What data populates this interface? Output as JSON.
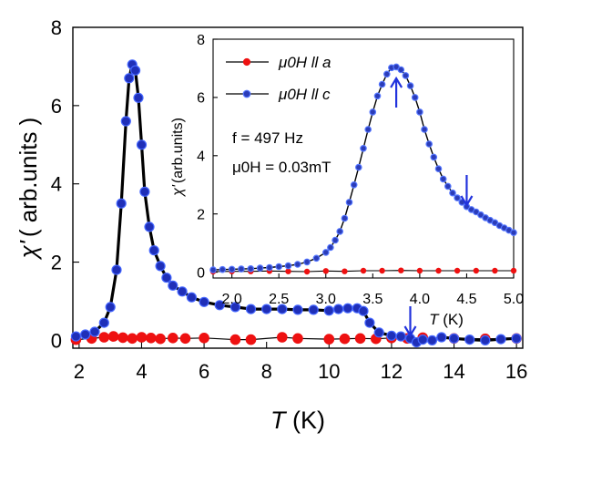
{
  "chart_data": [
    {
      "id": "main",
      "type": "line",
      "xlabel": {
        "symbol": "T",
        "unit": " (K)"
      },
      "ylabel": {
        "symbol": "χ'",
        "unit": "( arb.units )"
      },
      "xlim": [
        1.8,
        16.2
      ],
      "ylim": [
        -0.2,
        8
      ],
      "xticks": [
        2,
        4,
        6,
        8,
        10,
        12,
        14,
        16
      ],
      "yticks": [
        0,
        2,
        4,
        6,
        8
      ],
      "arrows_at_x": [
        12.6
      ],
      "series": [
        {
          "name": "μ0H ll a",
          "marker_color": "#ee1111",
          "edge_color": "#ee1111",
          "x": [
            1.9,
            2.4,
            2.8,
            3.1,
            3.4,
            3.7,
            4.0,
            4.3,
            4.6,
            5.0,
            5.4,
            6.0,
            7.0,
            7.5,
            8.5,
            9.0,
            10.0,
            10.5,
            11.0,
            11.5,
            12.0,
            12.5,
            13.0,
            14.0,
            15.0,
            16.0
          ],
          "y": [
            0.02,
            0.05,
            0.08,
            0.1,
            0.07,
            0.05,
            0.08,
            0.06,
            0.04,
            0.06,
            0.05,
            0.06,
            0.02,
            0.02,
            0.08,
            0.05,
            0.03,
            0.04,
            0.05,
            0.04,
            0.06,
            0.05,
            0.07,
            0.05,
            0.04,
            0.05
          ]
        },
        {
          "name": "μ0H ll c",
          "marker_color": "#1f2fb8",
          "edge_color": "#4466ff",
          "x": [
            1.9,
            2.2,
            2.5,
            2.8,
            3.0,
            3.2,
            3.35,
            3.5,
            3.6,
            3.7,
            3.8,
            3.9,
            4.0,
            4.1,
            4.25,
            4.4,
            4.6,
            4.8,
            5.0,
            5.3,
            5.6,
            6.0,
            6.5,
            7.0,
            7.5,
            8.0,
            8.5,
            9.0,
            9.5,
            10.0,
            10.3,
            10.6,
            10.9,
            11.1,
            11.3,
            11.6,
            12.0,
            12.3,
            12.6,
            12.8,
            13.0,
            13.3,
            13.6,
            14.0,
            14.5,
            15.0,
            15.5,
            16.0
          ],
          "y": [
            0.1,
            0.15,
            0.22,
            0.45,
            0.85,
            1.8,
            3.5,
            5.6,
            6.7,
            7.05,
            6.9,
            6.2,
            5.0,
            3.8,
            2.9,
            2.3,
            1.9,
            1.6,
            1.4,
            1.25,
            1.1,
            0.98,
            0.9,
            0.85,
            0.8,
            0.8,
            0.8,
            0.78,
            0.78,
            0.76,
            0.8,
            0.82,
            0.82,
            0.75,
            0.45,
            0.2,
            0.12,
            0.1,
            0.05,
            -0.05,
            0.02,
            0.0,
            0.08,
            0.05,
            0.02,
            0.0,
            0.03,
            0.05
          ]
        }
      ]
    },
    {
      "id": "inset",
      "type": "line",
      "xlabel": {
        "symbol": "T",
        "unit": " (K)"
      },
      "ylabel": {
        "symbol": "χ'",
        "unit": "(arb.units)"
      },
      "xlim": [
        1.8,
        5.0
      ],
      "ylim": [
        -0.2,
        8
      ],
      "xticks": [
        2.0,
        2.5,
        3.0,
        3.5,
        4.0,
        4.5,
        5.0
      ],
      "yticks": [
        0,
        2,
        4,
        6,
        8
      ],
      "arrows_at_x": [
        3.75,
        4.5
      ],
      "annotations": [
        "f = 497 Hz",
        "μ0H = 0.03mT"
      ],
      "legend_position": "top-left",
      "series": [
        {
          "name": "μ0H ll a",
          "marker_color": "#ee1111",
          "edge_color": "#ee1111",
          "x": [
            1.8,
            2.0,
            2.2,
            2.4,
            2.6,
            2.8,
            3.0,
            3.2,
            3.4,
            3.6,
            3.8,
            4.0,
            4.2,
            4.4,
            4.6,
            4.8,
            5.0
          ],
          "y": [
            0.02,
            0.03,
            0.03,
            0.04,
            0.03,
            0.02,
            0.04,
            0.03,
            0.05,
            0.05,
            0.06,
            0.05,
            0.05,
            0.05,
            0.05,
            0.05,
            0.05
          ]
        },
        {
          "name": "μ0H ll c",
          "marker_color": "#2b3cb8",
          "edge_color": "#5577ff",
          "x": [
            1.8,
            1.9,
            2.0,
            2.1,
            2.2,
            2.3,
            2.4,
            2.5,
            2.6,
            2.7,
            2.8,
            2.9,
            3.0,
            3.05,
            3.1,
            3.15,
            3.2,
            3.25,
            3.3,
            3.35,
            3.4,
            3.45,
            3.5,
            3.55,
            3.6,
            3.65,
            3.7,
            3.75,
            3.8,
            3.85,
            3.9,
            3.95,
            4.0,
            4.05,
            4.1,
            4.15,
            4.2,
            4.25,
            4.3,
            4.35,
            4.4,
            4.45,
            4.5,
            4.55,
            4.6,
            4.65,
            4.7,
            4.75,
            4.8,
            4.85,
            4.9,
            4.95,
            5.0
          ],
          "y": [
            0.08,
            0.09,
            0.1,
            0.11,
            0.12,
            0.14,
            0.16,
            0.19,
            0.22,
            0.27,
            0.35,
            0.48,
            0.68,
            0.85,
            1.1,
            1.4,
            1.85,
            2.4,
            3.0,
            3.6,
            4.25,
            4.9,
            5.5,
            6.05,
            6.45,
            6.8,
            7.02,
            7.05,
            6.95,
            6.75,
            6.4,
            6.0,
            5.5,
            4.9,
            4.4,
            3.95,
            3.55,
            3.2,
            2.95,
            2.72,
            2.55,
            2.4,
            2.25,
            2.15,
            2.07,
            1.97,
            1.87,
            1.78,
            1.7,
            1.6,
            1.52,
            1.44,
            1.36
          ]
        }
      ]
    }
  ]
}
